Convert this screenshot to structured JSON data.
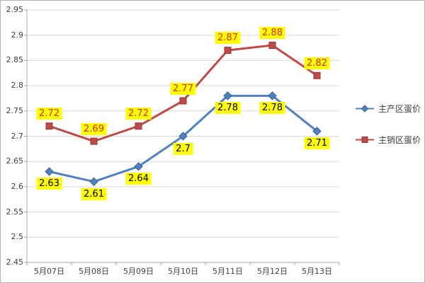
{
  "chart_data": {
    "type": "line",
    "title": "",
    "categories": [
      "5月07日",
      "5月08日",
      "5月09日",
      "5月10日",
      "5月11日",
      "5月12日",
      "5月13日"
    ],
    "series": [
      {
        "name": "主产区蛋价",
        "values": [
          2.63,
          2.61,
          2.64,
          2.7,
          2.78,
          2.78,
          2.71
        ],
        "color": "#4f81bd",
        "marker_stroke": "#3a6292",
        "marker": "diamond",
        "label_color": "#000000",
        "label_position": "below"
      },
      {
        "name": "主销区蛋价",
        "values": [
          2.72,
          2.69,
          2.72,
          2.77,
          2.87,
          2.88,
          2.82
        ],
        "color": "#be4b48",
        "marker_stroke": "#943634",
        "marker": "square",
        "label_color": "#e8251b",
        "label_position": "above"
      }
    ],
    "ylim": [
      2.45,
      2.95
    ],
    "ytick_step": 0.05,
    "yticks": [
      "2.45",
      "2.5",
      "2.55",
      "2.6",
      "2.65",
      "2.7",
      "2.75",
      "2.8",
      "2.85",
      "2.9",
      "2.95"
    ],
    "grid": true,
    "legend_position": "right",
    "data_label_bg": "#ffff00",
    "colors": {
      "gridline": "#d9d9d9",
      "axis": "#a6a6a6",
      "tick_text": "#3f3f3f",
      "background": "#ffffff"
    }
  }
}
